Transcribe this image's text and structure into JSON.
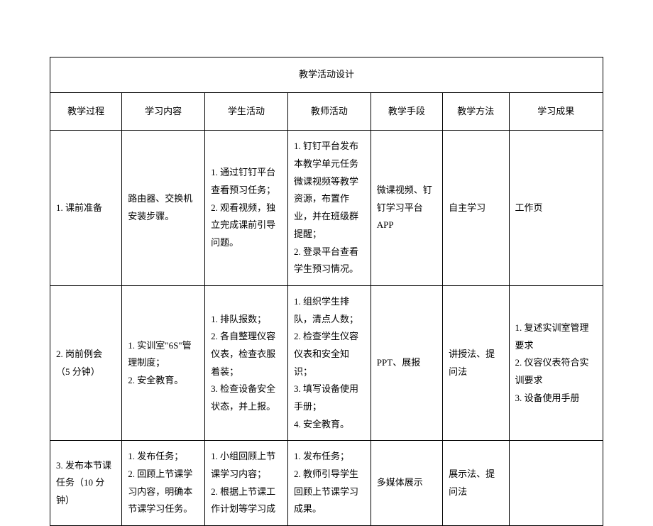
{
  "title": "教学活动设计",
  "headers": {
    "process": "教学过程",
    "content": "学习内容",
    "student": "学生活动",
    "teacher": "教师活动",
    "means": "教学手段",
    "method": "教学方法",
    "outcome": "学习成果"
  },
  "rows": [
    {
      "process": "1. 课前准备",
      "content": "路由器、交换机安装步骤。",
      "student": "1. 通过钉钉平台查看预习任务；\n2. 观看视频，独立完成课前引导问题。",
      "teacher": "1. 钉钉平台发布本教学单元任务微课视频等教学资源，布置作业，并在班级群提醒；\n2. 登录平台查看学生预习情况。",
      "means": "微课视频、钉钉学习平台 APP",
      "method": "自主学习",
      "outcome": "工作页"
    },
    {
      "process": "2. 岗前例会（5 分钟）",
      "content": "1. 实训室\"6S\"管理制度；\n2. 安全教育。",
      "student": "1. 排队报数；\n2. 各自整理仪容仪表，检查衣服着装；\n3. 检查设备安全状态，并上报。",
      "teacher": "1. 组织学生排队，清点人数；\n2. 检查学生仪容仪表和安全知识；\n3. 填写设备使用手册；\n4. 安全教育。",
      "means": "PPT、展报",
      "method": "讲授法、提问法",
      "outcome": "1. 复述实训室管理要求\n2. 仪容仪表符合实训要求\n3. 设备使用手册"
    },
    {
      "process": "3. 发布本节课任务（10 分钟）",
      "content": "1. 发布任务；\n2. 回顾上节课学习内容，明确本节课学习任务。",
      "student": "1. 小组回顾上节课学习内容；\n2. 根据上节课工作计划等学习成",
      "teacher": "1. 发布任务；\n2. 教师引导学生回顾上节课学习成果。",
      "means": "多媒体展示",
      "method": "展示法、提问法",
      "outcome": ""
    }
  ],
  "style": {
    "border_color": "#000000",
    "background_color": "#ffffff",
    "text_color": "#000000",
    "font_size": 13,
    "line_height": 1.9
  }
}
